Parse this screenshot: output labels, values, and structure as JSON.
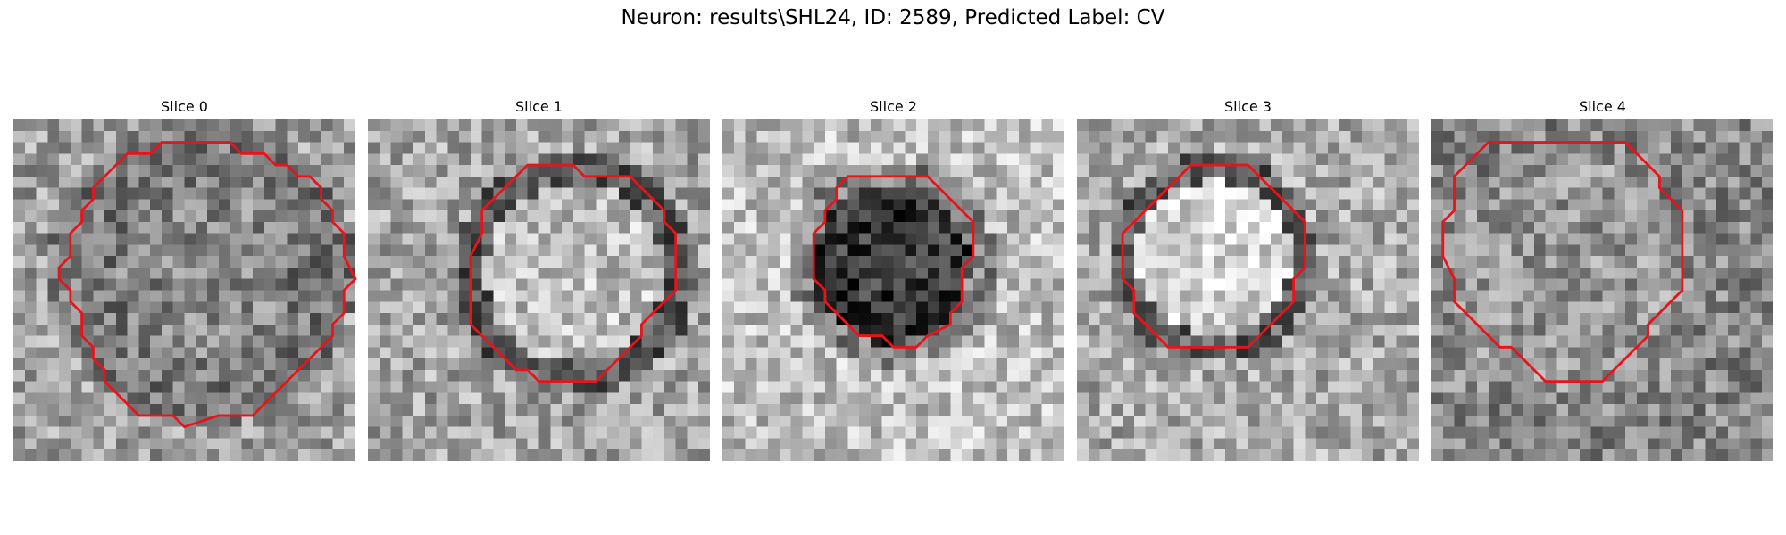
{
  "figure": {
    "title": "Neuron: results\\SHL24, ID: 2589, Predicted Label: CV"
  },
  "colors": {
    "contour": "#e8141c",
    "background": "#ffffff"
  },
  "slices": [
    {
      "label": "Slice 0",
      "contrast": "grey rim around a lighter speckled center",
      "seed": 11,
      "contour_path": [
        [
          16,
          2
        ],
        [
          19,
          2
        ],
        [
          20,
          3
        ],
        [
          22,
          3
        ],
        [
          23,
          4
        ],
        [
          24,
          4
        ],
        [
          25,
          5
        ],
        [
          26,
          5
        ],
        [
          27,
          6
        ],
        [
          27,
          7
        ],
        [
          28,
          8
        ],
        [
          28,
          9
        ],
        [
          29,
          10
        ],
        [
          29,
          12
        ],
        [
          30,
          14
        ],
        [
          29,
          15
        ],
        [
          29,
          17
        ],
        [
          28,
          18
        ],
        [
          28,
          19
        ],
        [
          27,
          20
        ],
        [
          26,
          21
        ],
        [
          25,
          22
        ],
        [
          24,
          23
        ],
        [
          23,
          24
        ],
        [
          22,
          25
        ],
        [
          21,
          26
        ],
        [
          18,
          26
        ],
        [
          15,
          27
        ],
        [
          14,
          26
        ],
        [
          11,
          26
        ],
        [
          10,
          25
        ],
        [
          9,
          24
        ],
        [
          8,
          23
        ],
        [
          8,
          22
        ],
        [
          7,
          21
        ],
        [
          7,
          20
        ],
        [
          6,
          19
        ],
        [
          6,
          17
        ],
        [
          5,
          16
        ],
        [
          5,
          15
        ],
        [
          4,
          14
        ],
        [
          4,
          13
        ],
        [
          5,
          12
        ],
        [
          5,
          10
        ],
        [
          6,
          9
        ],
        [
          6,
          8
        ],
        [
          7,
          7
        ],
        [
          7,
          6
        ],
        [
          8,
          5
        ],
        [
          9,
          4
        ],
        [
          10,
          3
        ],
        [
          12,
          3
        ],
        [
          13,
          2
        ],
        [
          15,
          2
        ]
      ]
    },
    {
      "label": "Slice 1",
      "contrast": "light round vesicle with dark membrane",
      "seed": 23,
      "contour_path": [
        [
          14,
          4
        ],
        [
          18,
          4
        ],
        [
          19,
          5
        ],
        [
          23,
          5
        ],
        [
          24,
          6
        ],
        [
          25,
          7
        ],
        [
          26,
          8
        ],
        [
          26,
          9
        ],
        [
          27,
          10
        ],
        [
          27,
          15
        ],
        [
          26,
          16
        ],
        [
          25,
          17
        ],
        [
          24,
          18
        ],
        [
          24,
          19
        ],
        [
          23,
          20
        ],
        [
          22,
          21
        ],
        [
          21,
          22
        ],
        [
          20,
          23
        ],
        [
          15,
          23
        ],
        [
          14,
          22
        ],
        [
          13,
          22
        ],
        [
          12,
          21
        ],
        [
          11,
          20
        ],
        [
          10,
          19
        ],
        [
          9,
          18
        ],
        [
          9,
          12
        ],
        [
          10,
          10
        ],
        [
          10,
          8
        ],
        [
          11,
          7
        ],
        [
          12,
          6
        ],
        [
          13,
          5
        ]
      ]
    },
    {
      "label": "Slice 2",
      "contrast": "dark vesicle on light background",
      "seed": 37,
      "contour_path": [
        [
          11,
          5
        ],
        [
          18,
          5
        ],
        [
          19,
          6
        ],
        [
          20,
          7
        ],
        [
          21,
          8
        ],
        [
          22,
          9
        ],
        [
          22,
          12
        ],
        [
          21,
          13
        ],
        [
          21,
          16
        ],
        [
          20,
          17
        ],
        [
          20,
          18
        ],
        [
          18,
          19
        ],
        [
          17,
          20
        ],
        [
          15,
          20
        ],
        [
          14,
          19
        ],
        [
          12,
          19
        ],
        [
          11,
          18
        ],
        [
          10,
          17
        ],
        [
          9,
          16
        ],
        [
          9,
          15
        ],
        [
          8,
          14
        ],
        [
          8,
          10
        ],
        [
          9,
          9
        ],
        [
          9,
          8
        ],
        [
          10,
          7
        ],
        [
          10,
          6
        ]
      ]
    },
    {
      "label": "Slice 3",
      "contrast": "bright center with dark ring",
      "seed": 53,
      "contour_path": [
        [
          10,
          4
        ],
        [
          15,
          4
        ],
        [
          16,
          5
        ],
        [
          17,
          6
        ],
        [
          18,
          7
        ],
        [
          19,
          8
        ],
        [
          20,
          9
        ],
        [
          20,
          13
        ],
        [
          19,
          14
        ],
        [
          19,
          16
        ],
        [
          18,
          17
        ],
        [
          17,
          18
        ],
        [
          16,
          19
        ],
        [
          15,
          20
        ],
        [
          11,
          20
        ],
        [
          8,
          20
        ],
        [
          7,
          19
        ],
        [
          6,
          18
        ],
        [
          5,
          17
        ],
        [
          5,
          15
        ],
        [
          4,
          14
        ],
        [
          4,
          10
        ],
        [
          5,
          9
        ],
        [
          6,
          8
        ],
        [
          7,
          7
        ],
        [
          8,
          6
        ],
        [
          9,
          5
        ]
      ]
    },
    {
      "label": "Slice 4",
      "contrast": "noisy speckled interior",
      "seed": 71,
      "contour_path": [
        [
          8,
          2
        ],
        [
          17,
          2
        ],
        [
          18,
          3
        ],
        [
          19,
          4
        ],
        [
          20,
          5
        ],
        [
          20,
          6
        ],
        [
          21,
          7
        ],
        [
          22,
          8
        ],
        [
          22,
          15
        ],
        [
          21,
          16
        ],
        [
          20,
          17
        ],
        [
          19,
          18
        ],
        [
          19,
          19
        ],
        [
          18,
          20
        ],
        [
          17,
          21
        ],
        [
          16,
          22
        ],
        [
          15,
          23
        ],
        [
          12,
          23
        ],
        [
          10,
          23
        ],
        [
          9,
          22
        ],
        [
          8,
          21
        ],
        [
          7,
          20
        ],
        [
          6,
          20
        ],
        [
          5,
          19
        ],
        [
          4,
          18
        ],
        [
          3,
          17
        ],
        [
          2,
          16
        ],
        [
          2,
          14
        ],
        [
          1,
          12
        ],
        [
          1,
          9
        ],
        [
          2,
          8
        ],
        [
          2,
          5
        ],
        [
          3,
          4
        ],
        [
          4,
          3
        ],
        [
          5,
          2
        ]
      ]
    }
  ]
}
